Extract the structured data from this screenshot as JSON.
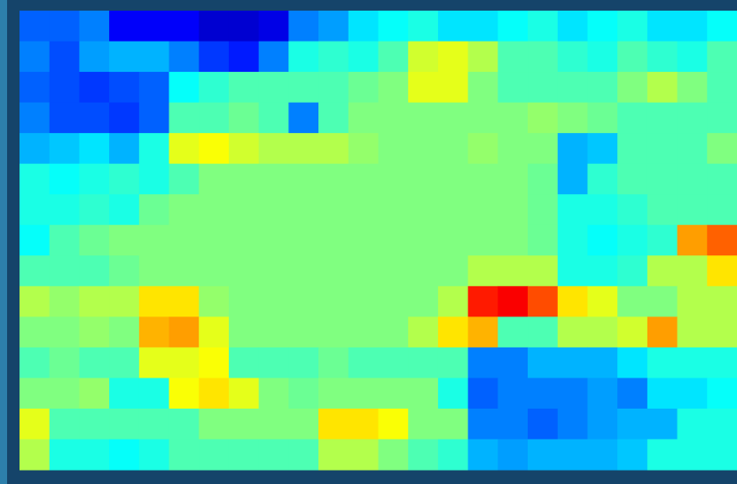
{
  "chart_data": {
    "type": "heatmap",
    "colormap": "jet",
    "z": [
      [
        0.22,
        0.22,
        0.25,
        0.12,
        0.12,
        0.12,
        0.08,
        0.08,
        0.1,
        0.25,
        0.28,
        0.35,
        0.38,
        0.4,
        0.35,
        0.35,
        0.38,
        0.4,
        0.35,
        0.38,
        0.4,
        0.35,
        0.35,
        0.38
      ],
      [
        0.25,
        0.2,
        0.28,
        0.3,
        0.3,
        0.25,
        0.18,
        0.15,
        0.25,
        0.4,
        0.42,
        0.4,
        0.45,
        0.58,
        0.6,
        0.55,
        0.45,
        0.45,
        0.42,
        0.4,
        0.45,
        0.42,
        0.4,
        0.45
      ],
      [
        0.22,
        0.2,
        0.18,
        0.2,
        0.22,
        0.38,
        0.42,
        0.45,
        0.45,
        0.45,
        0.45,
        0.48,
        0.5,
        0.6,
        0.6,
        0.5,
        0.45,
        0.45,
        0.45,
        0.45,
        0.5,
        0.55,
        0.5,
        0.45
      ],
      [
        0.25,
        0.2,
        0.2,
        0.18,
        0.22,
        0.45,
        0.45,
        0.48,
        0.45,
        0.25,
        0.45,
        0.5,
        0.5,
        0.5,
        0.5,
        0.5,
        0.5,
        0.52,
        0.5,
        0.48,
        0.45,
        0.45,
        0.45,
        0.45
      ],
      [
        0.3,
        0.32,
        0.35,
        0.3,
        0.4,
        0.6,
        0.62,
        0.58,
        0.55,
        0.55,
        0.55,
        0.52,
        0.5,
        0.5,
        0.5,
        0.52,
        0.5,
        0.5,
        0.3,
        0.32,
        0.45,
        0.45,
        0.45,
        0.5
      ],
      [
        0.4,
        0.38,
        0.4,
        0.42,
        0.4,
        0.45,
        0.5,
        0.5,
        0.5,
        0.5,
        0.5,
        0.5,
        0.5,
        0.5,
        0.5,
        0.5,
        0.5,
        0.48,
        0.3,
        0.42,
        0.45,
        0.45,
        0.45,
        0.45
      ],
      [
        0.4,
        0.4,
        0.42,
        0.4,
        0.48,
        0.5,
        0.5,
        0.5,
        0.5,
        0.5,
        0.5,
        0.5,
        0.5,
        0.5,
        0.5,
        0.5,
        0.5,
        0.48,
        0.4,
        0.4,
        0.42,
        0.45,
        0.45,
        0.45
      ],
      [
        0.38,
        0.45,
        0.48,
        0.5,
        0.5,
        0.5,
        0.5,
        0.5,
        0.5,
        0.5,
        0.5,
        0.5,
        0.5,
        0.5,
        0.5,
        0.5,
        0.5,
        0.48,
        0.4,
        0.38,
        0.4,
        0.42,
        0.72,
        0.78
      ],
      [
        0.45,
        0.45,
        0.45,
        0.48,
        0.5,
        0.5,
        0.5,
        0.5,
        0.5,
        0.5,
        0.5,
        0.5,
        0.5,
        0.5,
        0.5,
        0.55,
        0.55,
        0.55,
        0.4,
        0.4,
        0.42,
        0.55,
        0.55,
        0.65
      ],
      [
        0.55,
        0.52,
        0.55,
        0.55,
        0.65,
        0.65,
        0.52,
        0.5,
        0.5,
        0.5,
        0.5,
        0.5,
        0.5,
        0.5,
        0.55,
        0.85,
        0.88,
        0.8,
        0.65,
        0.6,
        0.5,
        0.5,
        0.55,
        0.55
      ],
      [
        0.5,
        0.5,
        0.52,
        0.5,
        0.7,
        0.72,
        0.6,
        0.5,
        0.5,
        0.5,
        0.5,
        0.5,
        0.5,
        0.55,
        0.65,
        0.7,
        0.45,
        0.45,
        0.55,
        0.55,
        0.58,
        0.72,
        0.55,
        0.55
      ],
      [
        0.45,
        0.48,
        0.45,
        0.45,
        0.6,
        0.6,
        0.62,
        0.45,
        0.45,
        0.45,
        0.48,
        0.45,
        0.45,
        0.45,
        0.45,
        0.25,
        0.25,
        0.3,
        0.3,
        0.3,
        0.35,
        0.4,
        0.4,
        0.4
      ],
      [
        0.5,
        0.5,
        0.52,
        0.4,
        0.4,
        0.62,
        0.65,
        0.6,
        0.5,
        0.48,
        0.5,
        0.5,
        0.5,
        0.5,
        0.4,
        0.22,
        0.25,
        0.25,
        0.25,
        0.28,
        0.25,
        0.35,
        0.35,
        0.38
      ],
      [
        0.6,
        0.45,
        0.45,
        0.45,
        0.45,
        0.45,
        0.5,
        0.5,
        0.5,
        0.5,
        0.65,
        0.65,
        0.62,
        0.5,
        0.5,
        0.25,
        0.25,
        0.22,
        0.25,
        0.28,
        0.3,
        0.3,
        0.4,
        0.4
      ],
      [
        0.55,
        0.4,
        0.4,
        0.38,
        0.4,
        0.45,
        0.45,
        0.45,
        0.45,
        0.45,
        0.55,
        0.55,
        0.5,
        0.45,
        0.42,
        0.3,
        0.28,
        0.3,
        0.3,
        0.3,
        0.32,
        0.4,
        0.4,
        0.4
      ]
    ]
  }
}
